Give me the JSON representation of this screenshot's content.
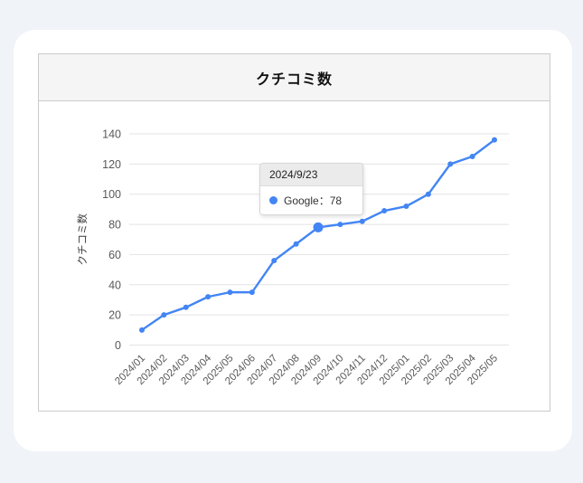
{
  "panel": {
    "title": "クチコミ数"
  },
  "tooltip": {
    "date": "2024/9/23",
    "entry": "Google：78",
    "marker_color": "#4285f4"
  },
  "chart_data": {
    "type": "line",
    "title": "クチコミ数",
    "xlabel": "",
    "ylabel": "クチコミ数",
    "categories": [
      "2024/01",
      "2024/02",
      "2024/03",
      "2024/04",
      "2025/05",
      "2024/06",
      "2024/07",
      "2024/08",
      "2024/09",
      "2024/10",
      "2024/11",
      "2024/12",
      "2025/01",
      "2025/02",
      "2025/03",
      "2025/04",
      "2025/05"
    ],
    "series": [
      {
        "name": "Google",
        "color": "#4285f4",
        "values": [
          10,
          20,
          25,
          32,
          35,
          35,
          56,
          67,
          78,
          80,
          82,
          89,
          92,
          100,
          120,
          125,
          136
        ]
      }
    ],
    "ylim": [
      0,
      140
    ],
    "yticks": [
      0,
      20,
      40,
      60,
      80,
      100,
      120,
      140
    ],
    "grid": true,
    "legend_position": "none",
    "highlighted_index": 8,
    "highlight": {
      "date_label": "2024/9/23",
      "series": "Google",
      "value": 78
    },
    "grid_color": "#e3e3e3",
    "tick_color": "#595959",
    "axis_title_color": "#3d3d3d"
  }
}
